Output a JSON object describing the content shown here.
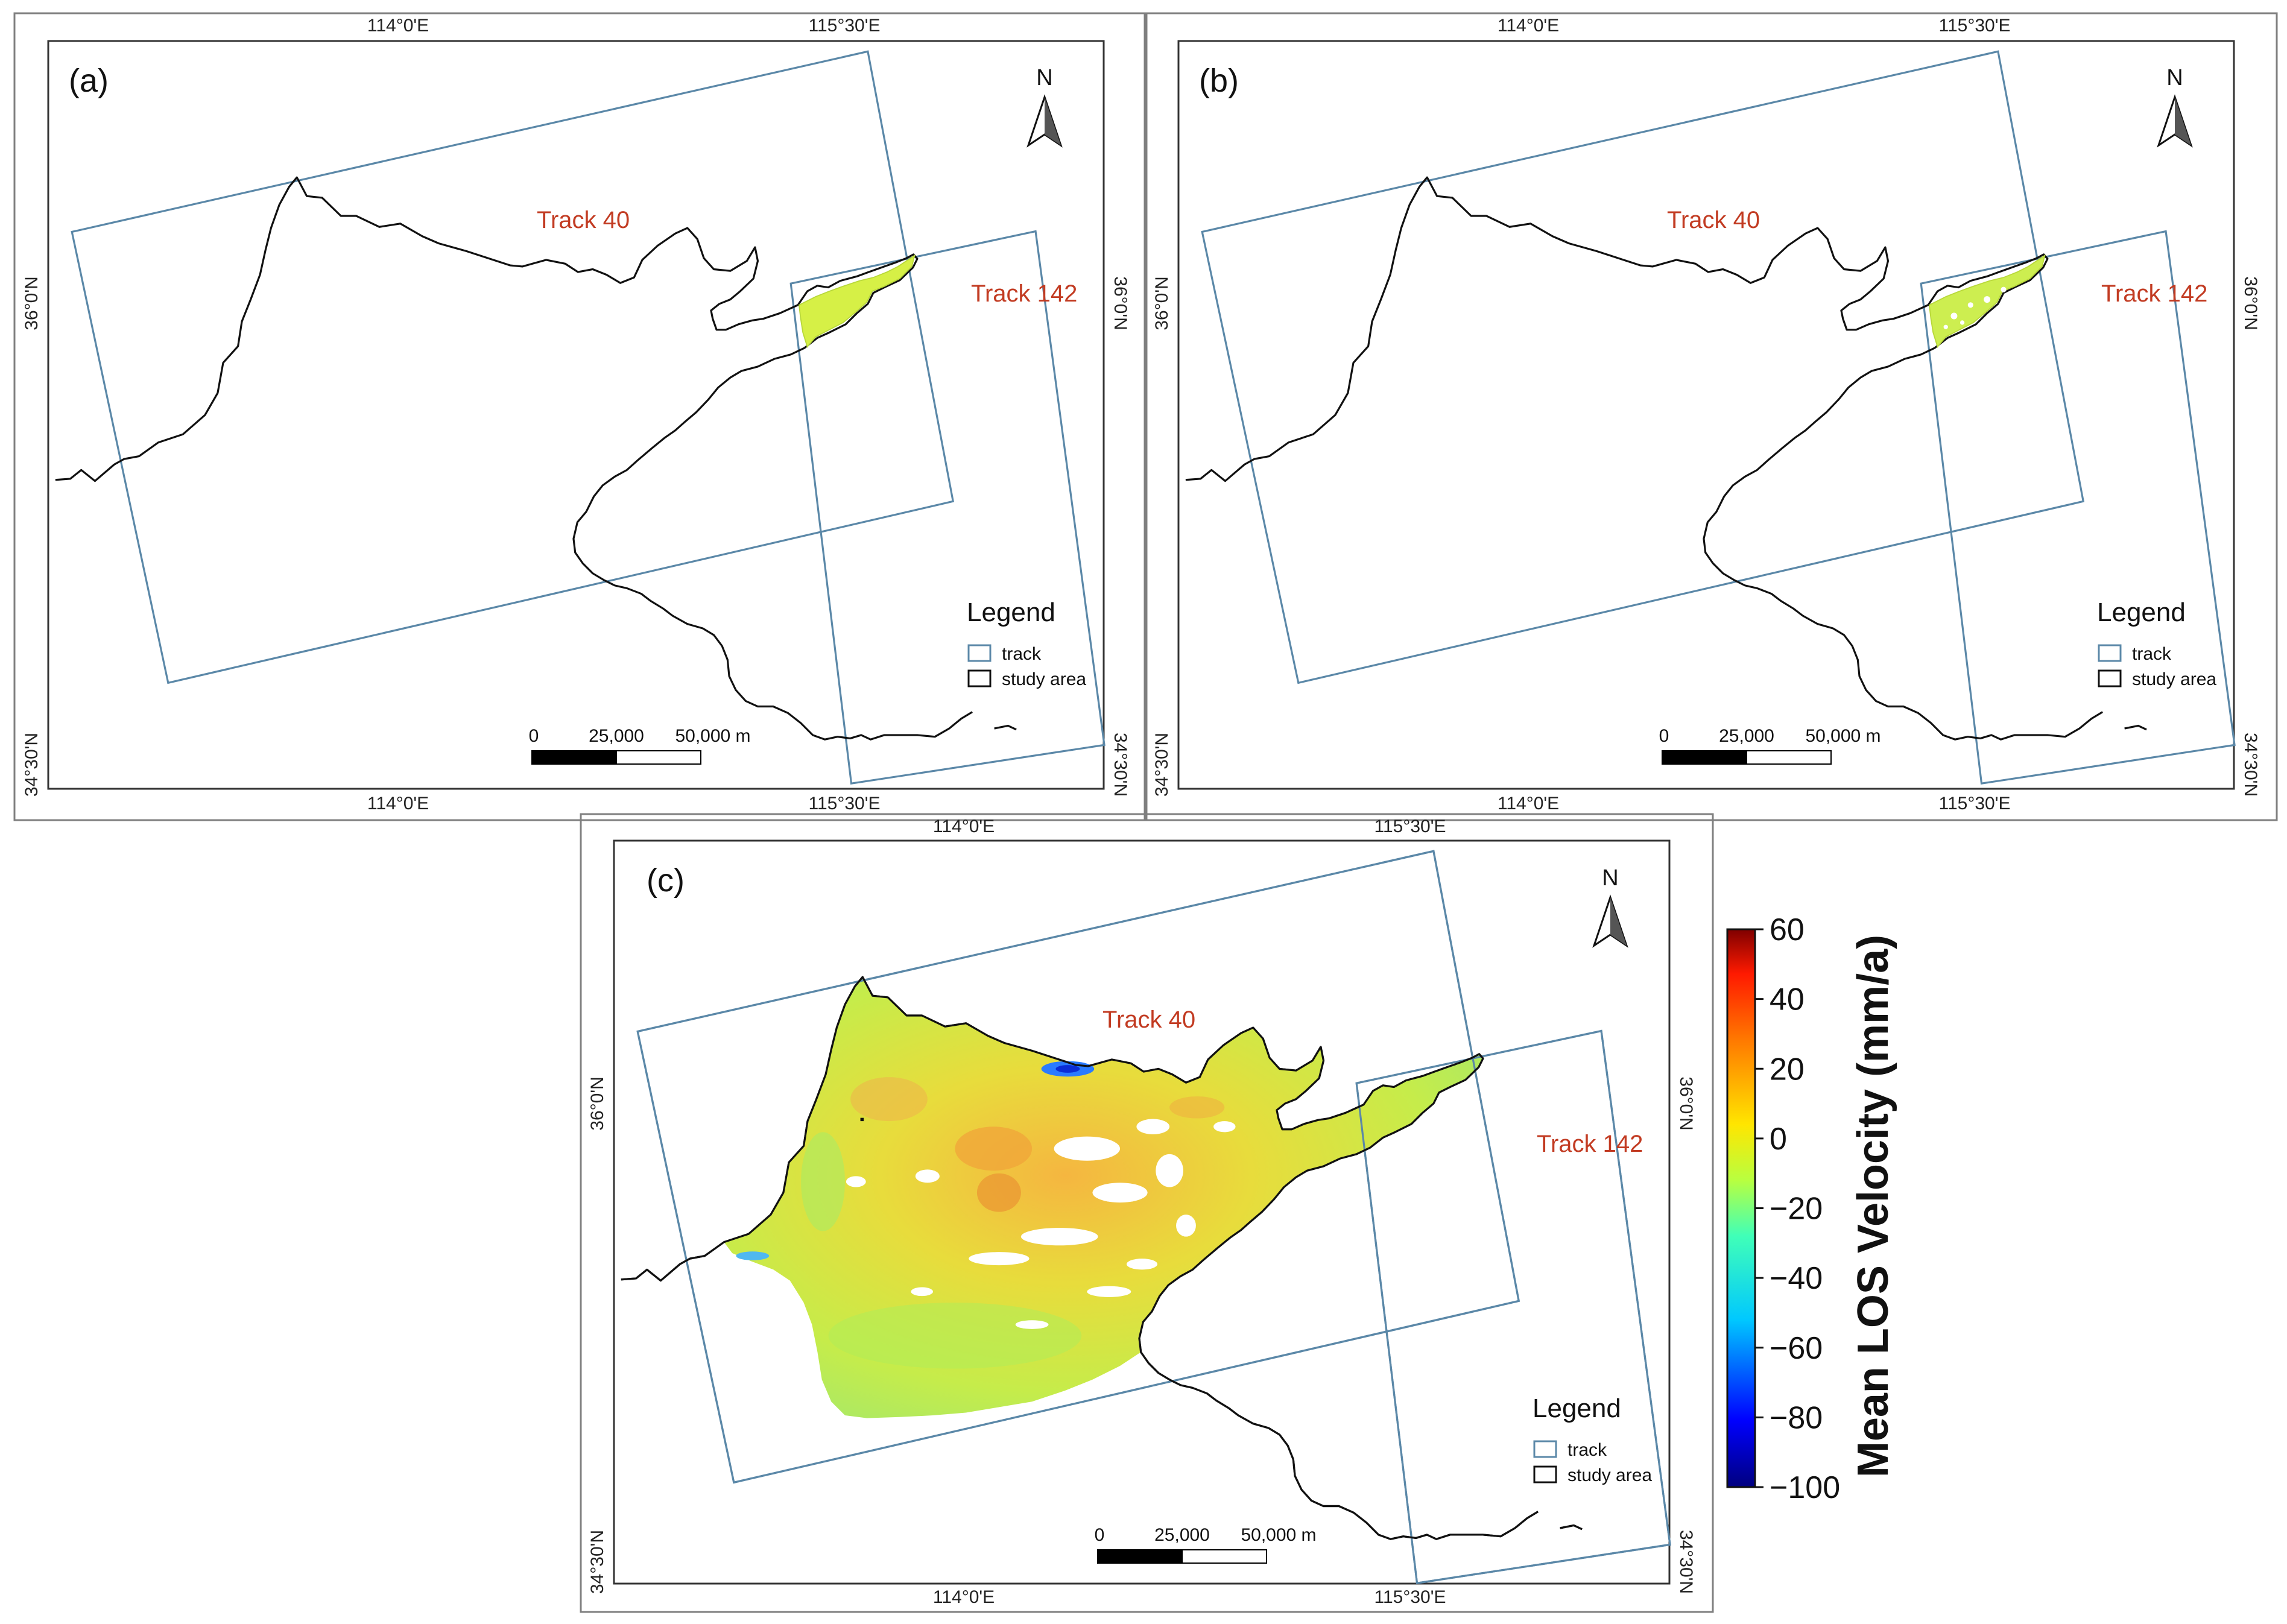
{
  "panels": [
    {
      "id": "a",
      "label": "(a)",
      "lon_labels": [
        "114°0'E",
        "115°30'E"
      ],
      "lat_labels": [
        "36°0'N",
        "34°30'N"
      ],
      "tracks": [
        "Track 40",
        "Track 142"
      ],
      "velocity_shown": "partial"
    },
    {
      "id": "b",
      "label": "(b)",
      "lon_labels": [
        "114°0'E",
        "115°30'E"
      ],
      "lat_labels": [
        "36°0'N",
        "34°30'N"
      ],
      "tracks": [
        "Track 40",
        "Track 142"
      ],
      "velocity_shown": "partial"
    },
    {
      "id": "c",
      "label": "(c)",
      "lon_labels": [
        "114°0'E",
        "115°30'E"
      ],
      "lat_labels": [
        "36°0'N",
        "34°30'N"
      ],
      "tracks": [
        "Track 40",
        "Track 142"
      ],
      "velocity_shown": "full"
    }
  ],
  "north_arrow": "N",
  "legend": {
    "title": "Legend",
    "items": [
      {
        "label": "track",
        "color": "#5b88a8"
      },
      {
        "label": "study area",
        "color": "#111111"
      }
    ]
  },
  "scale_bar": {
    "labels": [
      "0",
      "25,000",
      "50,000 m"
    ]
  },
  "colorbar": {
    "title": "Mean LOS Velocity (mm/a)",
    "min": -100,
    "max": 60,
    "ticks": [
      "60",
      "40",
      "20",
      "0",
      "−20",
      "−40",
      "−60",
      "−80",
      "−100"
    ],
    "colormap": "jet"
  },
  "colors": {
    "track": "#5b88a8",
    "track_label": "#c23b22",
    "study_area": "#111111"
  }
}
